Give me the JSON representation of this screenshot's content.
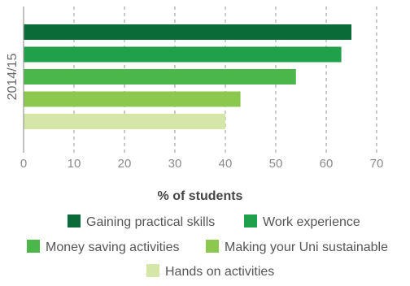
{
  "chart_data": {
    "type": "bar",
    "orientation": "horizontal",
    "category": "2014/15",
    "xlabel": "% of students",
    "xlim": [
      0,
      70
    ],
    "xticks": [
      0,
      10,
      20,
      30,
      40,
      50,
      60,
      70
    ],
    "grid": "vertical-dashed",
    "legend_position": "bottom",
    "series": [
      {
        "name": "Gaining practical skills",
        "value": 65,
        "color": "#0b6b38"
      },
      {
        "name": "Work experience",
        "value": 63,
        "color": "#21a04b"
      },
      {
        "name": "Money saving activities",
        "value": 54,
        "color": "#4bb74b"
      },
      {
        "name": "Making your Uni sustainable",
        "value": 43,
        "color": "#8cc84e"
      },
      {
        "name": "Hands on activities",
        "value": 40,
        "color": "#d4e7a8"
      }
    ]
  }
}
